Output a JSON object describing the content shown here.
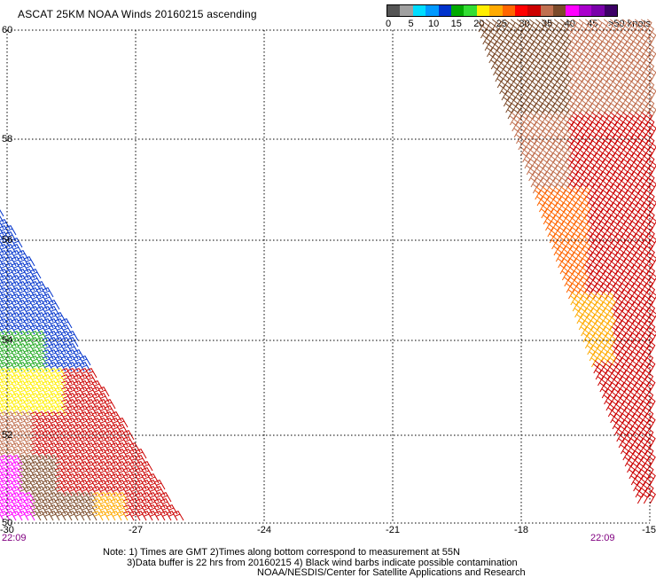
{
  "title": "ASCAT 25KM NOAA Winds 20160215 ascending",
  "legend": {
    "colors": [
      "#555555",
      "#a0a0a0",
      "#00ddff",
      "#0099ff",
      "#0033cc",
      "#00aa00",
      "#33dd33",
      "#ffee00",
      "#ffaa00",
      "#ff6600",
      "#ff0000",
      "#cc0000",
      "#c07050",
      "#7b4a2a",
      "#ff00ff",
      "#aa00cc",
      "#7a00aa",
      "#3c0066"
    ],
    "labels": [
      "0",
      "5",
      "10",
      "15",
      "20",
      "25",
      "30",
      "35",
      "40",
      "45"
    ],
    "unit_label": ">50 knots"
  },
  "axes": {
    "lat_ticks": [
      "60",
      "58",
      "56",
      "54",
      "52",
      "50"
    ],
    "lon_ticks": [
      "-30",
      "-27",
      "-24",
      "-21",
      "-18",
      "-15"
    ]
  },
  "times": {
    "left": "22:09",
    "right": "22:09"
  },
  "notes": {
    "line1": "Note: 1) Times are GMT 2)Times along bottom correspond to measurement at 55N",
    "line2": "3)Data buffer is 22 hrs from 20160215 4) Black wind barbs indicate possible contamination",
    "line3": "NOAA/NESDIS/Center for Satellite Applications and Research"
  },
  "swaths": {
    "left_colors": [
      "#0033cc",
      "#0033cc",
      "#22aa22",
      "#ffee00",
      "#c07050",
      "#cc0000",
      "#7b4a2a",
      "#ff00ff",
      "#ffaa00"
    ],
    "right_colors": [
      "#7b4a2a",
      "#c07050",
      "#cc0000",
      "#ff6600",
      "#ffaa00"
    ]
  }
}
